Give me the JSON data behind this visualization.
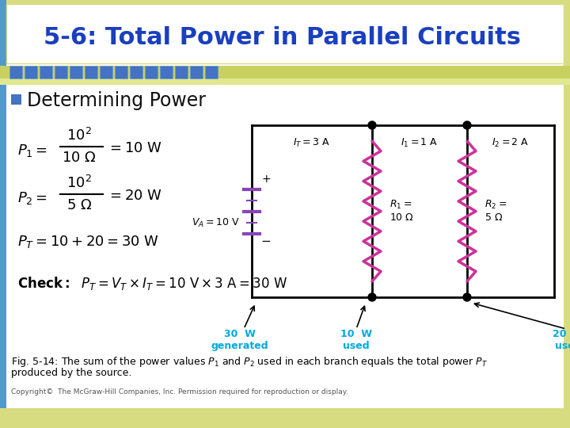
{
  "title": "5-6: Total Power in Parallel Circuits",
  "title_color": "#1A3FBF",
  "bg_color": "#FFFFFF",
  "header_bar_color": "#4472C4",
  "bullet_color": "#4472C4",
  "bullet_text": "Determining Power",
  "copyright": "Copyright©  The McGraw-Hill Companies, Inc. Permission required for reproduction or display.",
  "circuit_color": "#000000",
  "resistor_color": "#CC3399",
  "battery_color": "#8844BB",
  "label_cyan": "#00AADD",
  "olive_top": "#C8D060",
  "olive_bot": "#D8DC80",
  "sidebar_blue": "#5599CC",
  "sidebar_olive": "#C0C860"
}
